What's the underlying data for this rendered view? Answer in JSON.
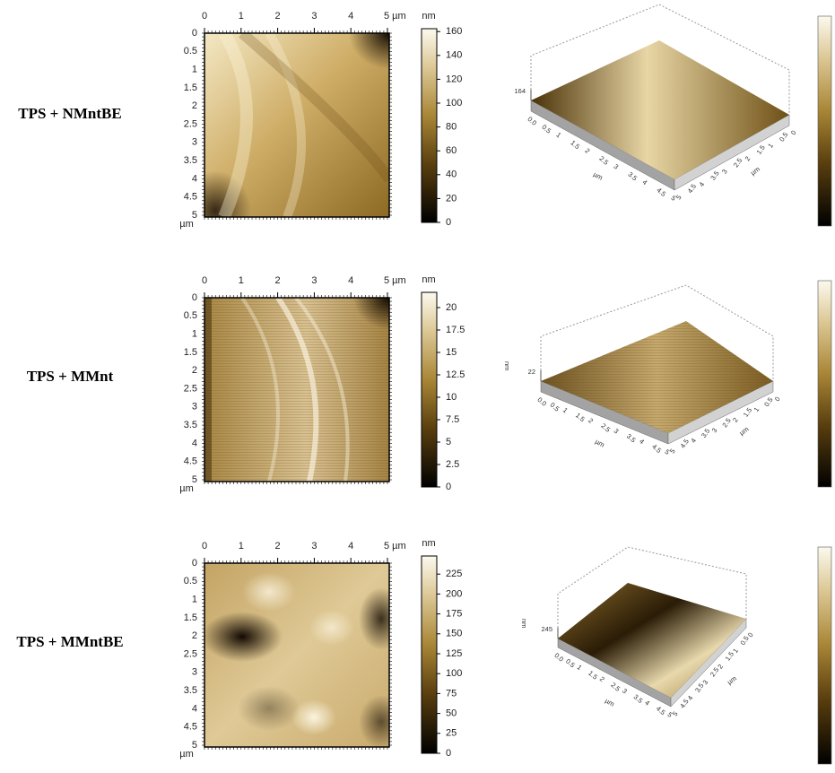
{
  "panels": [
    {
      "label": "TPS + NMntBE",
      "map": {
        "x_ticks": [
          "0",
          "1",
          "2",
          "3",
          "4",
          "5 µm"
        ],
        "y_ticks": [
          "0",
          "0.5",
          "1",
          "1.5",
          "2",
          "2.5",
          "3",
          "3.5",
          "4",
          "4.5",
          "5"
        ],
        "y_unit": "µm",
        "colorbar_unit": "nm",
        "colorbar_ticks": [
          "0",
          "20",
          "40",
          "60",
          "80",
          "100",
          "120",
          "140",
          "160"
        ]
      },
      "view3d": {
        "z_label": "164",
        "x_ticks": [
          "0.0",
          "0.5",
          "1",
          "1.5",
          "2",
          "2.5",
          "3",
          "3.5",
          "4",
          "4.5",
          "5"
        ],
        "x_unit": "µm",
        "y_ticks": [
          "5",
          "4.5",
          "4",
          "3.5",
          "3",
          "2.5",
          "2",
          "1.5",
          "1",
          "0.5",
          "0"
        ],
        "y_unit": "µm"
      }
    },
    {
      "label": "TPS + MMnt",
      "map": {
        "x_ticks": [
          "0",
          "1",
          "2",
          "3",
          "4",
          "5 µm"
        ],
        "y_ticks": [
          "0",
          "0.5",
          "1",
          "1.5",
          "2",
          "2.5",
          "3",
          "3.5",
          "4",
          "4.5",
          "5"
        ],
        "y_unit": "µm",
        "colorbar_unit": "nm",
        "colorbar_ticks": [
          "0",
          "2.5",
          "5",
          "7.5",
          "10",
          "12.5",
          "15",
          "17.5",
          "20"
        ]
      },
      "view3d": {
        "z_label": "22",
        "z_unit": "nm",
        "x_ticks": [
          "0.0",
          "0.5",
          "1",
          "1.5",
          "2",
          "2.5",
          "3",
          "3.5",
          "4",
          "4.5",
          "5"
        ],
        "x_unit": "µm",
        "y_ticks": [
          "5",
          "4.5",
          "4",
          "3.5",
          "3",
          "2.5",
          "2",
          "1.5",
          "1",
          "0.5",
          "0"
        ],
        "y_unit": "µm"
      }
    },
    {
      "label": "TPS + MMntBE",
      "map": {
        "x_ticks": [
          "0",
          "1",
          "2",
          "3",
          "4",
          "5 µm"
        ],
        "y_ticks": [
          "0",
          "0.5",
          "1",
          "1.5",
          "2",
          "2.5",
          "3",
          "3.5",
          "4",
          "4.5",
          "5"
        ],
        "y_unit": "µm",
        "colorbar_unit": "nm",
        "colorbar_ticks": [
          "0",
          "25",
          "50",
          "75",
          "100",
          "125",
          "150",
          "175",
          "200",
          "225"
        ]
      },
      "view3d": {
        "z_label": "245",
        "z_unit": "nm",
        "x_ticks": [
          "0.0",
          "0.5",
          "1",
          "1.5",
          "2",
          "2.5",
          "3",
          "3.5",
          "4",
          "4.5",
          "5"
        ],
        "x_unit": "µm",
        "y_ticks": [
          "5",
          "4.5",
          "4",
          "3.5",
          "3",
          "2.5",
          "2",
          "1.5",
          "1",
          "0.5",
          "0"
        ],
        "y_unit": "µm"
      }
    }
  ]
}
